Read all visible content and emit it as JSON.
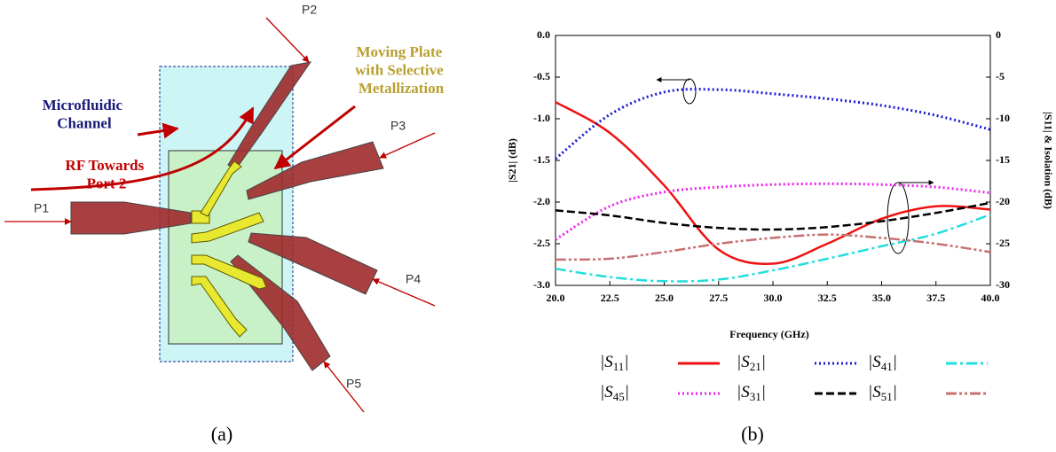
{
  "diagram": {
    "channel": "Microfluidic Channel",
    "plate": "Moving Plate with Selective Metallization",
    "rf": "RF Towards Port 2",
    "ports": [
      "P1",
      "P2",
      "P3",
      "P4",
      "P5"
    ],
    "caption": "(a)"
  },
  "chart_caption": "(b)",
  "chart_data": {
    "type": "line",
    "x_label": "Frequency (GHz)",
    "y_label": "|S21| (dB)",
    "y2_label": "|S11| & Isolation (dB)",
    "x": [
      20,
      22.5,
      25,
      27.5,
      30,
      32.5,
      35,
      37.5,
      40
    ],
    "xlim": [
      20,
      40
    ],
    "xticks": [
      {
        "value": 20,
        "label": "20.0"
      },
      22.5,
      {
        "value": 25,
        "label": "25.0"
      },
      27.5,
      {
        "value": 30,
        "label": "30.0"
      },
      32.5,
      {
        "value": 35,
        "label": "35.0"
      },
      37.5,
      {
        "value": 40,
        "label": "40.0"
      }
    ],
    "ylim": [
      -3,
      0
    ],
    "yticks": [
      {
        "value": 0,
        "label": "0.0"
      },
      -0.5,
      {
        "value": -1,
        "label": "-1.0"
      },
      -1.5,
      {
        "value": -2,
        "label": "-2.0"
      },
      -2.5,
      {
        "value": -3,
        "label": "-3.0"
      }
    ],
    "y2lim": [
      -30,
      0
    ],
    "y2ticks": [
      0,
      -5,
      -10,
      -15,
      -20,
      -25,
      -30
    ],
    "series": [
      {
        "name": "|S11|",
        "color": "#ee1111",
        "style": "solid",
        "axis": "y2",
        "values": [
          -8,
          -11.7,
          -18,
          -25.7,
          -27.4,
          -25,
          -22,
          -20.5,
          -20.9
        ]
      },
      {
        "name": "|S21|",
        "color": "#1a1ad6",
        "style": "dotted",
        "axis": "y",
        "values": [
          -1.48,
          -0.95,
          -0.68,
          -0.65,
          -0.7,
          -0.76,
          -0.84,
          -0.96,
          -1.13
        ]
      },
      {
        "name": "|S41|",
        "color": "#22dddd",
        "style": "dashdot",
        "axis": "y2",
        "values": [
          -28,
          -29,
          -29.5,
          -29.3,
          -28.2,
          -26.8,
          -25.3,
          -23.8,
          -21.5
        ]
      },
      {
        "name": "|S45|",
        "color": "#ee22ee",
        "style": "dotted",
        "axis": "y2",
        "values": [
          -24.5,
          -20.5,
          -18.8,
          -18.2,
          -17.9,
          -17.8,
          -17.9,
          -18.2,
          -18.9
        ]
      },
      {
        "name": "|S31|",
        "color": "#000000",
        "style": "dashed",
        "axis": "y2",
        "values": [
          -21,
          -21.6,
          -22.5,
          -23.1,
          -23.3,
          -23,
          -22.3,
          -21.3,
          -20.1
        ]
      },
      {
        "name": "|S51|",
        "color": "#c87070",
        "style": "dashdotdot",
        "axis": "y2",
        "values": [
          -26.9,
          -26.8,
          -26,
          -25,
          -24.3,
          -23.9,
          -24.3,
          -25,
          -26
        ]
      }
    ]
  }
}
